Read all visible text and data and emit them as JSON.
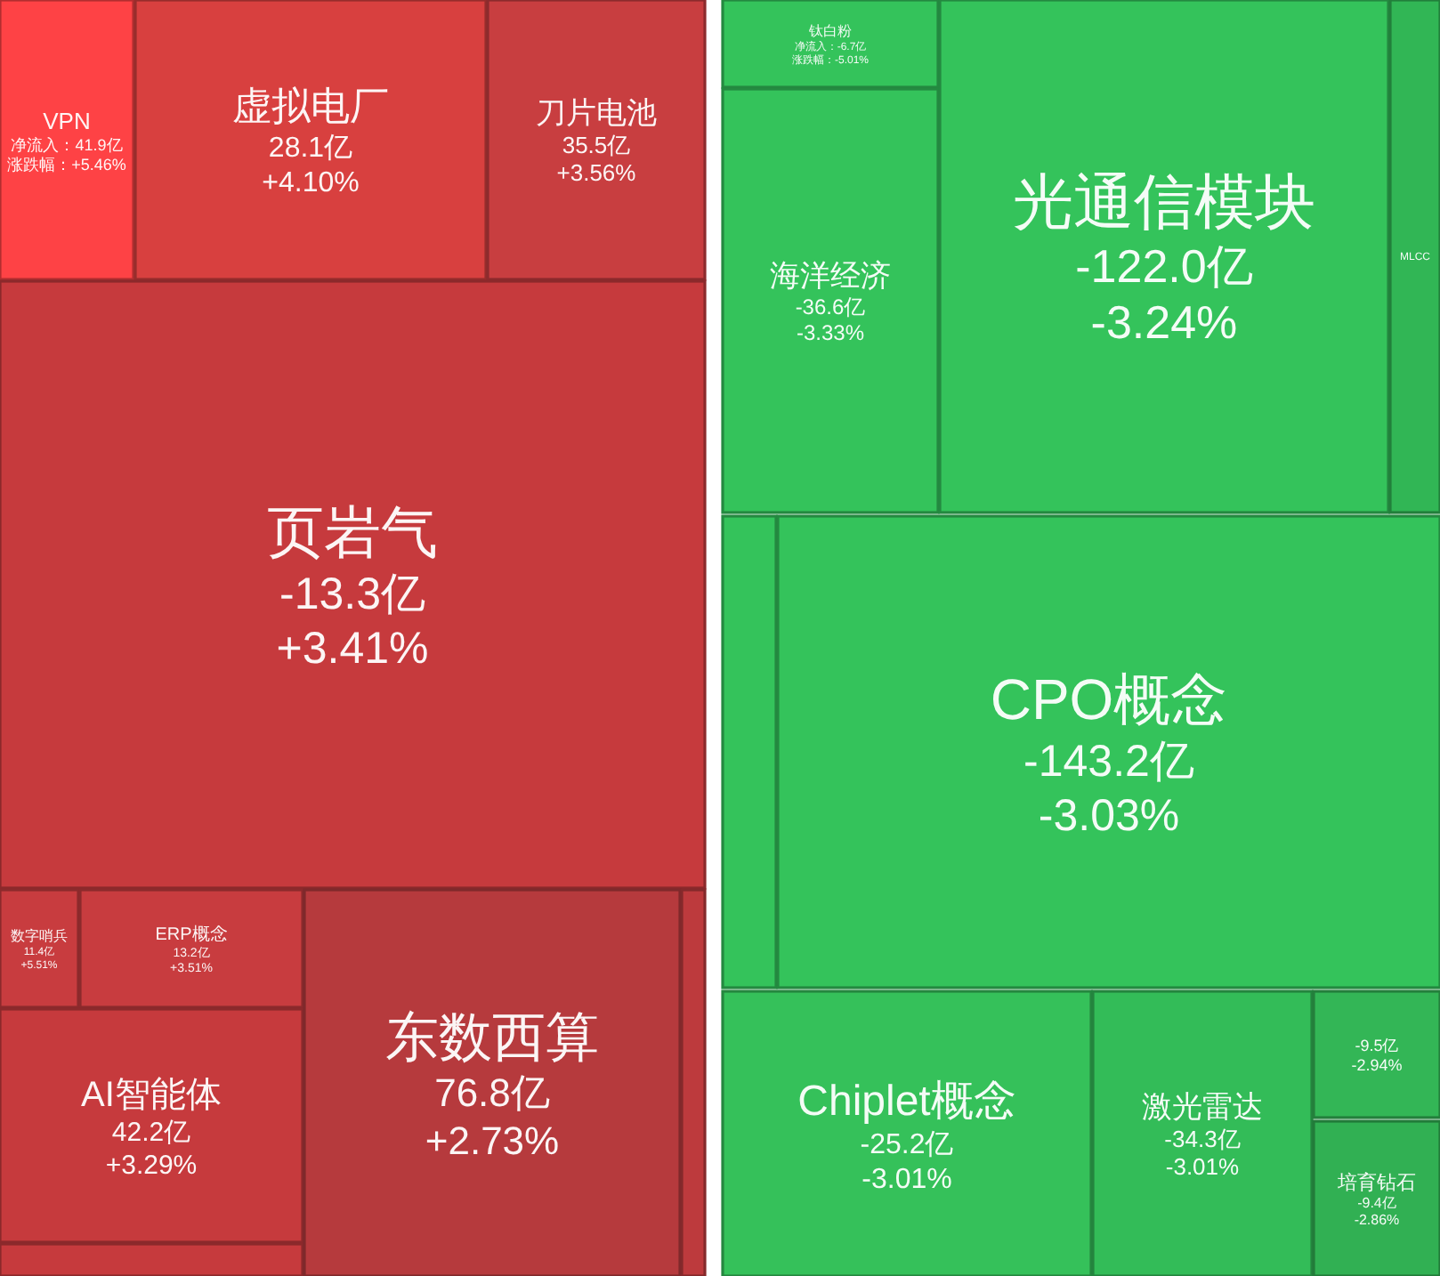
{
  "chart_data": [
    {
      "type": "other",
      "categories": [
        "VPN",
        "虚拟电厂",
        "刀片电池",
        "页岩气",
        "数字哨兵",
        "ERP概念",
        "AI智能体",
        null,
        "东数西算",
        null
      ],
      "series": [
        {
          "colors": [
            "#fe4245",
            "#d8403f",
            "#c83e40",
            "#c63a3d",
            "#c83c3f",
            "#c83c3f",
            "#c63a3d",
            "#c63a3d",
            "#b63a3d",
            "#bd3a3d"
          ],
          "values": [
            41.9,
            28.1,
            35.5,
            -13.3,
            11.4,
            13.2,
            42.2,
            null,
            76.8,
            null
          ],
          "value_labels": [
            "净流入：41.9亿",
            "28.1亿",
            "35.5亿",
            "-13.3亿",
            "11.4亿",
            "13.2亿",
            "42.2亿",
            null,
            "76.8亿",
            null
          ]
        },
        {
          "values": [
            5.46,
            4.1,
            3.56,
            3.41,
            5.51,
            3.51,
            3.29,
            null,
            2.73,
            null
          ],
          "value_labels": [
            "涨跌幅：+5.46%",
            "+4.10%",
            "+3.56%",
            "+3.41%",
            "+5.51%",
            "+3.51%",
            "+3.29%",
            null,
            "+2.73%",
            null
          ]
        }
      ]
    },
    {
      "type": "other",
      "categories": [
        "钛白粉",
        "海洋经济",
        "光通信模块",
        "MLCC",
        null,
        "CPO概念",
        "Chiplet概念",
        "激光雷达",
        null,
        "培育钻石"
      ],
      "series": [
        {
          "colors": [
            "#34c35b",
            "#34c35b",
            "#34c35b",
            "#31b655",
            "#34c35b",
            "#34c35b",
            "#35c15a",
            "#33bc58",
            "#33b656",
            "#31b053"
          ],
          "values": [
            -6.7,
            -36.6,
            -122.0,
            null,
            null,
            -143.2,
            -25.2,
            -34.3,
            null,
            -9.4
          ],
          "value_labels": [
            "净流入：-6.7亿",
            "-36.6亿",
            "-122.0亿",
            null,
            null,
            "-143.2亿",
            "-25.2亿",
            "-34.3亿",
            null,
            "-9.4亿"
          ]
        },
        {
          "values": [
            -5.01,
            -3.33,
            -3.24,
            null,
            null,
            -3.03,
            -3.01,
            -3.01,
            null,
            -2.86
          ],
          "value_labels": [
            "涨跌幅：-5.01%",
            "-3.33%",
            "-3.24%",
            null,
            null,
            "-3.03%",
            "-3.01%",
            "-3.01%",
            null,
            "-2.86%"
          ]
        }
      ],
      "annotations": [
        "-9.5亿",
        "-2.94%"
      ]
    }
  ]
}
